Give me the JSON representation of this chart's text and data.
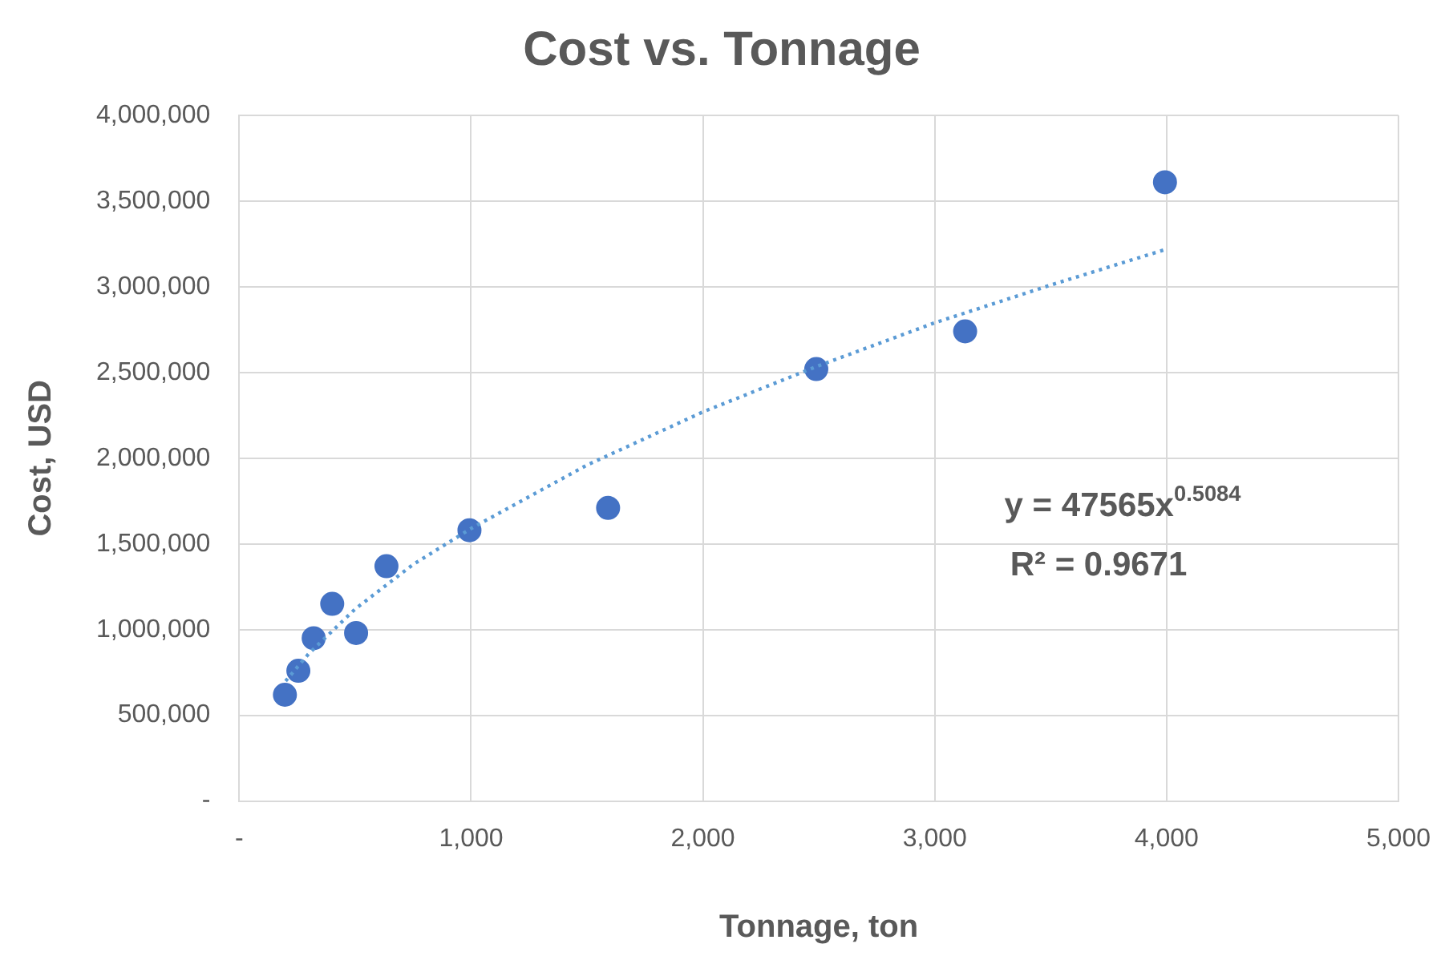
{
  "chart_data": {
    "type": "scatter",
    "title": "Cost vs. Tonnage",
    "xlabel": "Tonnage, ton",
    "ylabel": "Cost, USD",
    "series": [
      {
        "color": "#4472c4",
        "marker": "circle",
        "x": [
          197,
          255,
          321,
          401,
          504,
          635,
          993,
          1591,
          2489,
          3131,
          3993
        ],
        "values": [
          620000,
          760000,
          950000,
          1150000,
          980000,
          1370000,
          1580000,
          1710000,
          2520000,
          2740000,
          3610000
        ]
      },
      {
        "type": "line",
        "color": "#5b9bd5",
        "line_style": "dotted",
        "marker": "none",
        "x": [
          200,
          300,
          500,
          750,
          1000,
          1500,
          2000,
          2500,
          3000,
          3500,
          4000
        ],
        "values": [
          700000,
          860000,
          1120000,
          1380000,
          1590000,
          1960000,
          2270000,
          2540000,
          2790000,
          3010000,
          3220000
        ]
      }
    ],
    "xlim": [
      0,
      5000
    ],
    "xticks": [
      {
        "value": 0,
        "label": "-"
      },
      {
        "value": 1000,
        "label": "1,000"
      },
      {
        "value": 2000,
        "label": "2,000"
      },
      {
        "value": 3000,
        "label": "3,000"
      },
      {
        "value": 4000,
        "label": "4,000"
      },
      {
        "value": 5000,
        "label": "5,000"
      }
    ],
    "ylim": [
      0,
      4000000
    ],
    "yticks": [
      {
        "value": 0,
        "label": "-"
      },
      {
        "value": 500000,
        "label": "500,000"
      },
      {
        "value": 1000000,
        "label": "1,000,000"
      },
      {
        "value": 1500000,
        "label": "1,500,000"
      },
      {
        "value": 2000000,
        "label": "2,000,000"
      },
      {
        "value": 2500000,
        "label": "2,500,000"
      },
      {
        "value": 3000000,
        "label": "3,000,000"
      },
      {
        "value": 3500000,
        "label": "3,500,000"
      },
      {
        "value": 4000000,
        "label": "4,000,000"
      }
    ],
    "grid": true,
    "legend": false,
    "annotations": [
      "y = 47565x$^{0.5084}$",
      "R² = 0.9671"
    ]
  }
}
